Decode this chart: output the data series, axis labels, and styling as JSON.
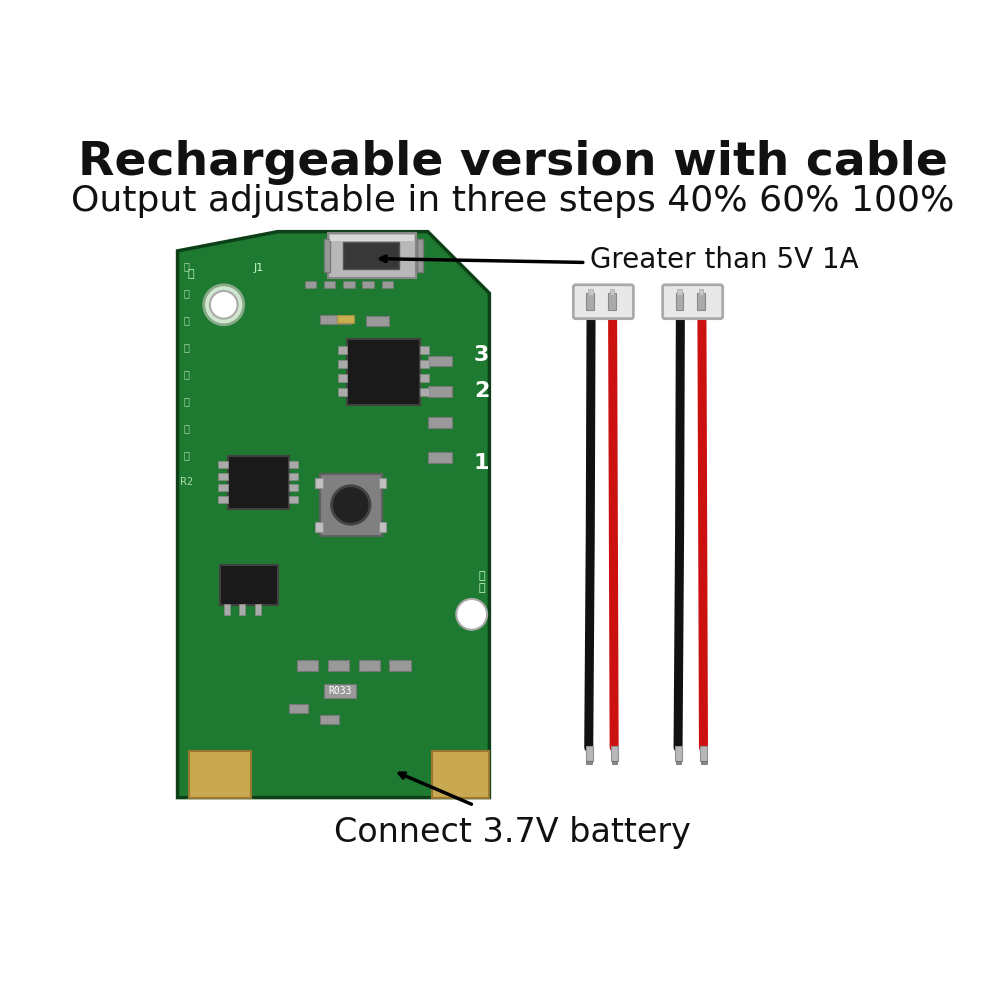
{
  "title1": "Rechargeable version with cable",
  "title2": "Output adjustable in three steps 40% 60% 100%",
  "annotation1": "Greater than 5V 1A",
  "annotation2": "Connect 3.7V battery",
  "bg_color": "#ffffff",
  "board_color": "#1e7a30",
  "board_edge": "#0d4018",
  "gold_pad": "#c8a850",
  "gold_pad_edge": "#9a7830",
  "chip_color": "#1a1a1a",
  "chip_edge": "#404040",
  "connector_white": "#e8e8e8",
  "connector_gray": "#b0b0b0",
  "pin_metal": "#aaaaaa",
  "wire_red": "#cc1111",
  "wire_black": "#111111",
  "wire_tip": "#c0c0c0",
  "smd_color": "#999999",
  "smd_edge": "#777777",
  "usb_body": "#c0c0c0",
  "usb_shine": "#e0e0e0",
  "usb_dark": "#606060",
  "text_color": "#111111",
  "title_fontsize": 34,
  "subtitle_fontsize": 26,
  "annot_fontsize": 20
}
